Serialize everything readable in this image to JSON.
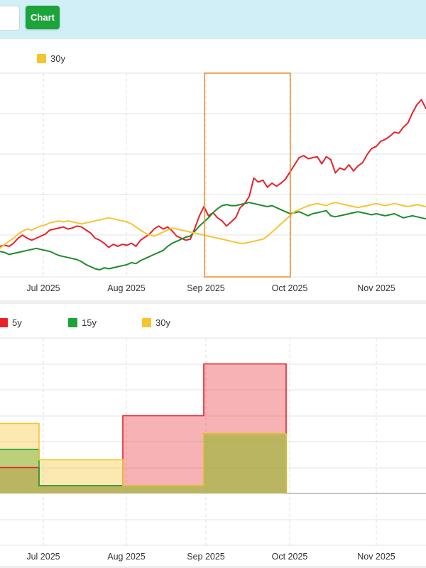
{
  "toolbar": {
    "chart_button_label": "Chart"
  },
  "colors": {
    "s5y": "#e8212b",
    "s15y": "#1f8a2a",
    "s30y": "#f5c531",
    "selection": "#f28c28"
  },
  "chart_data": [
    {
      "type": "line",
      "title": "",
      "legend": {
        "position": "top-left",
        "visible_entries": [
          "30y"
        ]
      },
      "x_tick_labels": [
        "Jul 2025",
        "Aug 2025",
        "Sep 2025",
        "Oct 2025",
        "Nov 2025"
      ],
      "grid": true,
      "selection_range": [
        "Sep 2025",
        "Oct 2025"
      ],
      "series": [
        {
          "name": "",
          "color": "#e8212b",
          "values": [
            30,
            31,
            30,
            33,
            38,
            41,
            38,
            36,
            38,
            40,
            42,
            46,
            47,
            48,
            49,
            47,
            48,
            50,
            49,
            46,
            43,
            38,
            36,
            33,
            29,
            32,
            30,
            32,
            31,
            33,
            30,
            36,
            39,
            42,
            47,
            50,
            47,
            49,
            45,
            40,
            38,
            36,
            37,
            48,
            60,
            69,
            60,
            63,
            58,
            55,
            50,
            54,
            58,
            68,
            72,
            79,
            97,
            93,
            95,
            88,
            92,
            89,
            92,
            96,
            103,
            110,
            117,
            119,
            116,
            117,
            118,
            111,
            118,
            115,
            102,
            107,
            105,
            110,
            104,
            109,
            112,
            120,
            126,
            128,
            133,
            135,
            138,
            142,
            141,
            147,
            151,
            161,
            169,
            174,
            165
          ]
        },
        {
          "name": "",
          "color": "#1f8a2a",
          "values": [
            25,
            24,
            22,
            23,
            24,
            25,
            26,
            27,
            28,
            27,
            26,
            25,
            23,
            21,
            20,
            19,
            18,
            17,
            15,
            12,
            10,
            8,
            7,
            9,
            8,
            9,
            10,
            11,
            12,
            14,
            13,
            16,
            18,
            20,
            22,
            24,
            26,
            30,
            33,
            35,
            37,
            39,
            40,
            45,
            50,
            54,
            58,
            63,
            67,
            70,
            71,
            70,
            70,
            71,
            72,
            73,
            72,
            71,
            70,
            69,
            70,
            68,
            66,
            64,
            62,
            63,
            64,
            62,
            60,
            62,
            63,
            64,
            65,
            60,
            59,
            60,
            61,
            62,
            63,
            64,
            63,
            62,
            61,
            62,
            61,
            60,
            61,
            62,
            60,
            58,
            59,
            60,
            59,
            58,
            57
          ]
        },
        {
          "name": "30y",
          "color": "#f5c531",
          "values": [
            28,
            32,
            35,
            38,
            42,
            45,
            47,
            46,
            48,
            50,
            51,
            53,
            54,
            55,
            54,
            55,
            54,
            53,
            52,
            53,
            54,
            55,
            56,
            57,
            58,
            57,
            56,
            55,
            54,
            52,
            49,
            46,
            43,
            41,
            40,
            42,
            44,
            46,
            48,
            47,
            46,
            45,
            44,
            43,
            42,
            41,
            40,
            39,
            38,
            37,
            36,
            35,
            34,
            33,
            33,
            34,
            35,
            36,
            37,
            40,
            44,
            48,
            52,
            56,
            60,
            64,
            66,
            68,
            70,
            71,
            72,
            71,
            70,
            72,
            73,
            72,
            71,
            70,
            69,
            68,
            69,
            70,
            71,
            72,
            71,
            70,
            71,
            72,
            71,
            70,
            69,
            70,
            71,
            70,
            69
          ]
        }
      ]
    },
    {
      "type": "area",
      "title": "",
      "legend": {
        "position": "top-left",
        "entries": [
          "5y",
          "15y",
          "30y"
        ]
      },
      "x_tick_labels": [
        "Jul 2025",
        "Aug 2025",
        "Sep 2025",
        "Oct 2025",
        "Nov 2025"
      ],
      "grid": true,
      "step": true,
      "x": [
        "Jun 2025",
        "Jul 2025",
        "Aug 2025",
        "Sep 2025"
      ],
      "series": [
        {
          "name": "5y",
          "color": "#e8212b",
          "values": [
            1.0,
            0.3,
            3.0,
            5.0
          ]
        },
        {
          "name": "15y",
          "color": "#1ca33a",
          "values": [
            1.7,
            0.3,
            0.3,
            2.3
          ]
        },
        {
          "name": "30y",
          "color": "#f5c531",
          "values": [
            2.7,
            1.3,
            0.3,
            2.3
          ]
        }
      ]
    }
  ]
}
